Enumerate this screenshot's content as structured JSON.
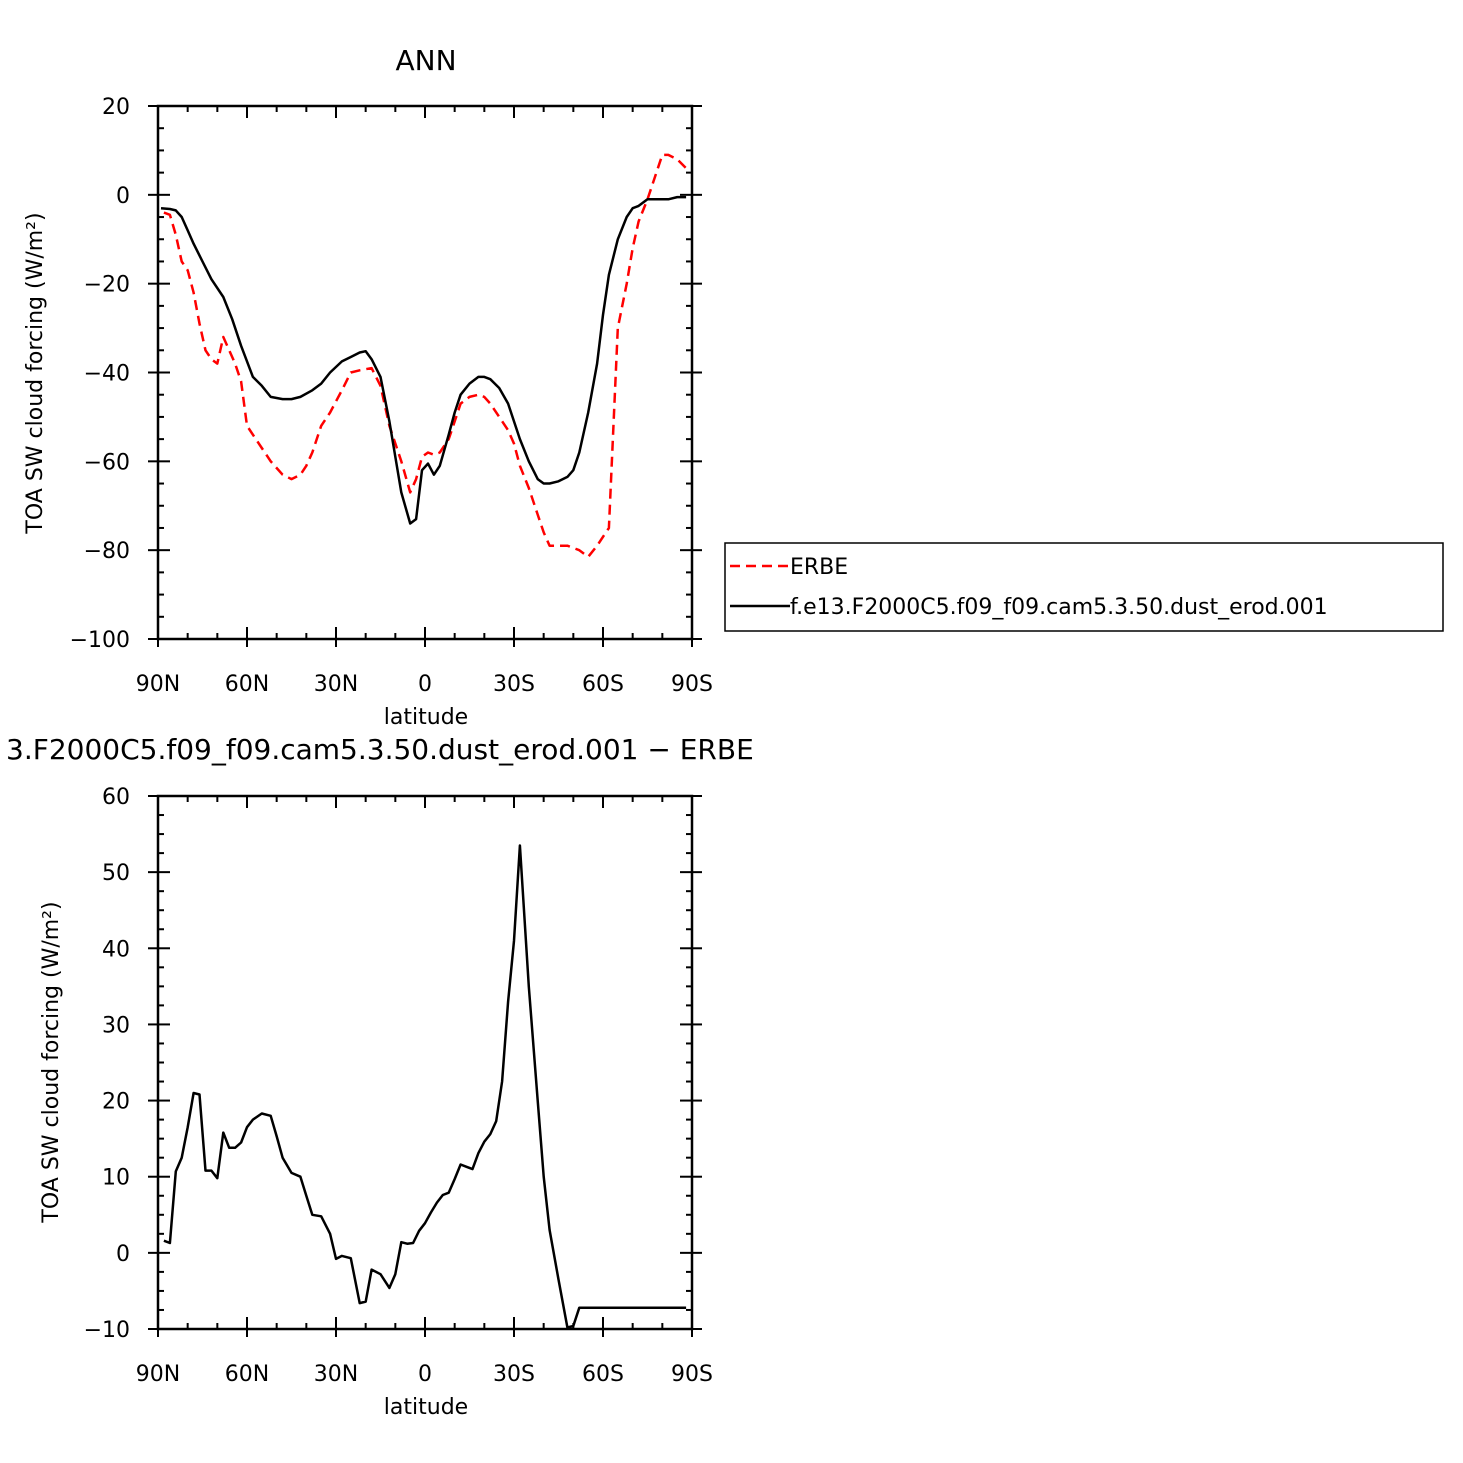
{
  "chart_data": [
    {
      "type": "line",
      "title": "ANN",
      "xlabel": "latitude",
      "ylabel": "TOA SW cloud forcing (W/m²)",
      "xlim": [
        90,
        -90
      ],
      "ylim": [
        -100,
        20
      ],
      "x_ticks": [
        {
          "value": 90,
          "label": "90N"
        },
        {
          "value": 60,
          "label": "60N"
        },
        {
          "value": 30,
          "label": "30N"
        },
        {
          "value": 0,
          "label": "0"
        },
        {
          "value": -30,
          "label": "30S"
        },
        {
          "value": -60,
          "label": "60S"
        },
        {
          "value": -90,
          "label": "90S"
        }
      ],
      "y_ticks": [
        {
          "value": 20,
          "label": "20"
        },
        {
          "value": 0,
          "label": "0"
        },
        {
          "value": -20,
          "label": "−20"
        },
        {
          "value": -40,
          "label": "−40"
        },
        {
          "value": -60,
          "label": "−60"
        },
        {
          "value": -80,
          "label": "−80"
        },
        {
          "value": -100,
          "label": "−100"
        }
      ],
      "legend_position": "right",
      "series": [
        {
          "name": "ERBE",
          "color": "#ff0000",
          "dash": true,
          "x": [
            88,
            86,
            84,
            82,
            80,
            78,
            76,
            74,
            72,
            70,
            68,
            66,
            64,
            62,
            60,
            58,
            55,
            52,
            48,
            45,
            42,
            40,
            38,
            35,
            32,
            28,
            25,
            22,
            18,
            15,
            12,
            8,
            5,
            3,
            1,
            -1,
            -3,
            -5,
            -8,
            -10,
            -12,
            -15,
            -18,
            -20,
            -22,
            -25,
            -28,
            -30,
            -32,
            -35,
            -38,
            -40,
            -42,
            -45,
            -48,
            -50,
            -52,
            -55,
            -58,
            -60,
            -62,
            -65,
            -68,
            -70,
            -72,
            -75,
            -78,
            -80,
            -82,
            -85,
            -88
          ],
          "y": [
            -4,
            -4.5,
            -9,
            -15,
            -17,
            -22,
            -29,
            -35,
            -37,
            -38,
            -32,
            -35,
            -38,
            -42,
            -52,
            -54,
            -57,
            -60,
            -63,
            -64,
            -63,
            -61,
            -58,
            -52,
            -49,
            -44,
            -40,
            -39.5,
            -39,
            -43,
            -52,
            -60,
            -67,
            -64,
            -59,
            -58,
            -58.5,
            -58,
            -55,
            -51,
            -47,
            -45.5,
            -45,
            -45.5,
            -47,
            -50,
            -53,
            -56,
            -61,
            -66,
            -72,
            -76,
            -79,
            -79,
            -79,
            -79.5,
            -80,
            -81.5,
            -79,
            -77,
            -75,
            -30,
            -20,
            -12,
            -6,
            -1,
            5,
            9,
            9,
            8,
            6
          ]
        },
        {
          "name": "f.e13.F2000C5.f09_f09.cam5.3.50.dust_erod.001",
          "color": "#000000",
          "dash": false,
          "x": [
            89,
            86,
            84,
            82,
            80,
            78,
            75,
            72,
            68,
            65,
            62,
            58,
            55,
            52,
            48,
            45,
            42,
            38,
            35,
            32,
            28,
            25,
            22,
            20,
            18,
            15,
            12,
            8,
            5,
            3,
            1,
            -1,
            -3,
            -5,
            -8,
            -10,
            -12,
            -15,
            -18,
            -20,
            -22,
            -25,
            -28,
            -30,
            -32,
            -35,
            -38,
            -40,
            -42,
            -45,
            -48,
            -50,
            -52,
            -55,
            -58,
            -60,
            -62,
            -65,
            -68,
            -70,
            -72,
            -75,
            -78,
            -80,
            -82,
            -85,
            -88
          ],
          "y": [
            -3,
            -3.2,
            -3.5,
            -5,
            -8,
            -11,
            -15,
            -19,
            -23,
            -28,
            -34,
            -41,
            -43,
            -45.5,
            -46,
            -46,
            -45.5,
            -44,
            -42.5,
            -40,
            -37.5,
            -36.5,
            -35.5,
            -35.2,
            -37,
            -41,
            -51,
            -67,
            -74,
            -73,
            -62,
            -60.5,
            -63,
            -61,
            -54,
            -49,
            -45,
            -42.5,
            -41,
            -41,
            -41.5,
            -43.5,
            -47,
            -51,
            -55,
            -60,
            -64,
            -65,
            -65,
            -64.5,
            -63.5,
            -62,
            -58,
            -49,
            -38,
            -27,
            -18,
            -10,
            -5,
            -3,
            -2.5,
            -1,
            -1,
            -1,
            -1,
            -0.5,
            -0.5
          ]
        }
      ]
    },
    {
      "type": "line",
      "title": "3.F2000C5.f09_f09.cam5.3.50.dust_erod.001 − ERBE",
      "xlabel": "latitude",
      "ylabel": "TOA SW cloud forcing (W/m²)",
      "xlim": [
        90,
        -90
      ],
      "ylim": [
        -10,
        60
      ],
      "x_ticks": [
        {
          "value": 90,
          "label": "90N"
        },
        {
          "value": 60,
          "label": "60N"
        },
        {
          "value": 30,
          "label": "30N"
        },
        {
          "value": 0,
          "label": "0"
        },
        {
          "value": -30,
          "label": "30S"
        },
        {
          "value": -60,
          "label": "60S"
        },
        {
          "value": -90,
          "label": "90S"
        }
      ],
      "y_ticks": [
        {
          "value": 60,
          "label": "60"
        },
        {
          "value": 50,
          "label": "50"
        },
        {
          "value": 40,
          "label": "40"
        },
        {
          "value": 30,
          "label": "30"
        },
        {
          "value": 20,
          "label": "20"
        },
        {
          "value": 10,
          "label": "10"
        },
        {
          "value": 0,
          "label": "0"
        },
        {
          "value": -10,
          "label": "−10"
        }
      ],
      "series": [
        {
          "color": "#000000",
          "dash": false,
          "x": [
            88,
            86,
            84,
            82,
            80,
            78,
            76,
            74,
            72,
            70,
            68,
            66,
            64,
            62,
            60,
            58,
            55,
            52,
            50,
            48,
            45,
            42,
            40,
            38,
            35,
            32,
            30,
            28,
            25,
            22,
            20,
            18,
            15,
            12,
            10,
            8,
            6,
            4,
            2,
            0,
            -2,
            -4,
            -6,
            -8,
            -10,
            -12,
            -14,
            -16,
            -18,
            -20,
            -22,
            -24,
            -26,
            -28,
            -30,
            -32,
            -35,
            -38,
            -40,
            -42,
            -45,
            -48,
            -50,
            -52,
            -55,
            -58,
            -60,
            -62,
            -65,
            -67,
            -68,
            -70,
            -72,
            -75,
            -78,
            -80,
            -82,
            -84,
            -86,
            -88
          ],
          "y": [
            1.6,
            1.3,
            10.7,
            12.5,
            16.5,
            21,
            20.8,
            10.8,
            10.8,
            9.8,
            15.8,
            13.8,
            13.8,
            14.5,
            16.5,
            17.5,
            18.3,
            18,
            15.3,
            12.5,
            10.5,
            10,
            7.5,
            5,
            4.8,
            2.5,
            -0.8,
            -0.4,
            -0.7,
            -6.6,
            -6.4,
            -2.2,
            -2.8,
            -4.6,
            -2.8,
            1.4,
            1.2,
            1.3,
            2.9,
            3.9,
            5.3,
            6.6,
            7.6,
            7.9,
            9.7,
            11.6,
            11.3,
            11,
            13.1,
            14.6,
            15.6,
            17.3,
            22.5,
            33,
            41,
            53.5,
            35,
            20,
            10,
            3,
            -3.5,
            -9.8,
            -9.6,
            -7.2,
            -7.2,
            -7.2,
            -7.2,
            -7.2,
            -7.2,
            -7.2,
            -7.2,
            -7.2,
            -7.2,
            -7.2,
            -7.2,
            -7.2,
            -7.2,
            -7.2,
            -7.2,
            -7.2
          ]
        }
      ]
    }
  ]
}
